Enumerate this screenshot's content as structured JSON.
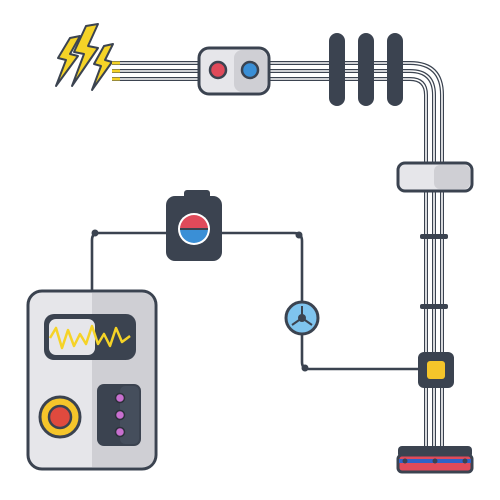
{
  "title": "",
  "colors": {
    "outline": "#3b4350",
    "wire": "#3b4350",
    "lightning": "#f5d327",
    "red": "#e04a5a",
    "blue": "#3a8fd6",
    "panel_light": "#e6e6ea",
    "panel_dark": "#cfcfd4",
    "screen": "#3b4350",
    "wave": "#f5d327",
    "dial_ring": "#f5c52a",
    "dial_center": "#e04a3e",
    "led": "#c86fcf",
    "yellow_lamp": "#f5c52a",
    "insulator": "#3b4350",
    "clamp": "#e6e6ea",
    "plug_top": "#3b4350",
    "bottom_red": "#e04a5a",
    "bottom_blue": "#2f63c9",
    "meter_blue": "#7fc4ee"
  },
  "components": [
    {
      "name": "lightning-bolts",
      "icon": "lightning-icon"
    },
    {
      "name": "cable-connector",
      "icon": "connector-icon"
    },
    {
      "name": "insulators",
      "icon": "insulator-icon"
    },
    {
      "name": "cable-clamp",
      "icon": "clamp-icon"
    },
    {
      "name": "polarity-indicator",
      "icon": "polarity-icon"
    },
    {
      "name": "multimeter",
      "icon": "multimeter-icon"
    },
    {
      "name": "sensor-gauge",
      "icon": "gauge-icon"
    },
    {
      "name": "junction-box",
      "icon": "junction-icon"
    },
    {
      "name": "terminal-strip",
      "icon": "terminal-icon"
    }
  ]
}
